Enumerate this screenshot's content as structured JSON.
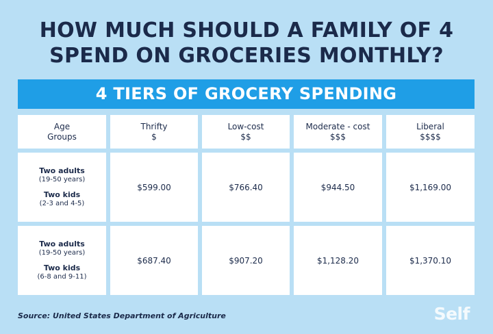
{
  "title_line1": "HOW MUCH SHOULD A FAMILY OF 4",
  "title_line2": "SPEND ON GROCERIES MONTHLY?",
  "banner": "4 TIERS OF GROCERY SPENDING",
  "headers": [
    {
      "line1": "Age",
      "line2": "Groups"
    },
    {
      "line1": "Thrifty",
      "line2": "$"
    },
    {
      "line1": "Low-cost",
      "line2": "$$"
    },
    {
      "line1": "Moderate - cost",
      "line2": "$$$"
    },
    {
      "line1": "Liberal",
      "line2": "$$$$"
    }
  ],
  "rows": [
    {
      "adults_label": "Two adults",
      "adults_ages": "(19-50 years)",
      "kids_label": "Two kids",
      "kids_ages": "(2-3 and 4-5)",
      "thrifty": "$599.00",
      "low_cost": "$766.40",
      "moderate_cost": "$944.50",
      "liberal": "$1,169.00"
    },
    {
      "adults_label": "Two adults",
      "adults_ages": "(19-50 years)",
      "kids_label": "Two kids",
      "kids_ages": "(6-8 and 9-11)",
      "thrifty": "$687.40",
      "low_cost": "$907.20",
      "moderate_cost": "$1,128.20",
      "liberal": "$1,370.10"
    }
  ],
  "source": "Source: United States Department of Agriculture",
  "logo": "Self"
}
